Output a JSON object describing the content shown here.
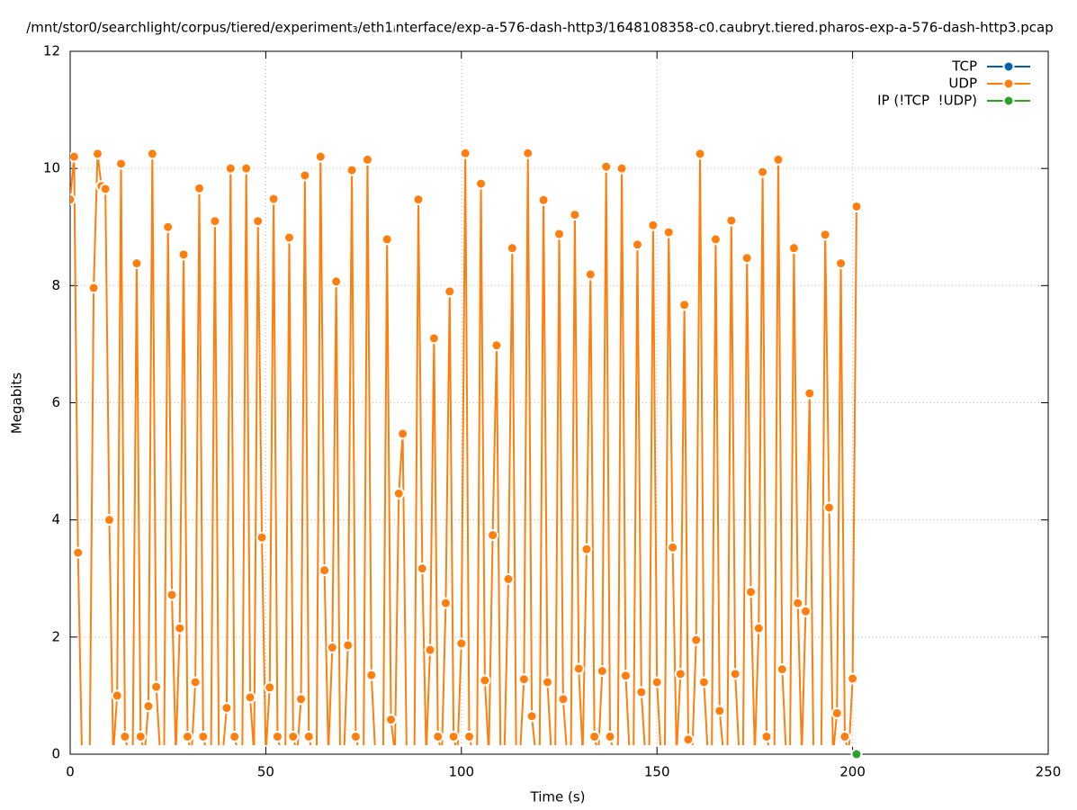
{
  "chart_data": {
    "type": "line",
    "title": "/mnt/stor0/searchlight/corpus/tiered/experiment₃/eth1ᵢnterface/exp-a-576-dash-http3/1648108358-c0.caubryt.tiered.pharos-exp-a-576-dash-http3.pcap",
    "xlabel": "Time (s)",
    "ylabel": "Megabits",
    "xlim": [
      0,
      250
    ],
    "xticks": [
      0,
      50,
      100,
      150,
      200,
      250
    ],
    "ylim": [
      0,
      12
    ],
    "yticks": [
      0,
      2,
      4,
      6,
      8,
      10,
      12
    ],
    "grid": true,
    "legend": "top-right",
    "series": [
      {
        "name": "TCP",
        "color": "#0060ad",
        "x": [],
        "values": []
      },
      {
        "name": "UDP",
        "color": "#ff7f0e",
        "x": [
          0,
          1,
          2,
          3,
          4,
          5,
          6,
          7,
          8,
          9,
          10,
          11,
          12,
          13,
          14,
          15,
          16,
          17,
          18,
          19,
          20,
          21,
          22,
          23,
          24,
          25,
          26,
          27,
          28,
          29,
          30,
          31,
          32,
          33,
          34,
          35,
          36,
          37,
          38,
          39,
          40,
          41,
          42,
          43,
          44,
          45,
          46,
          47,
          48,
          49,
          50,
          51,
          52,
          53,
          54,
          55,
          56,
          57,
          58,
          59,
          60,
          61,
          62,
          63,
          64,
          65,
          66,
          67,
          68,
          69,
          70,
          71,
          72,
          73,
          74,
          75,
          76,
          77,
          78,
          79,
          80,
          81,
          82,
          83,
          84,
          85,
          86,
          87,
          88,
          89,
          90,
          91,
          92,
          93,
          94,
          95,
          96,
          97,
          98,
          99,
          100,
          101,
          102,
          103,
          104,
          105,
          106,
          107,
          108,
          109,
          110,
          111,
          112,
          113,
          114,
          115,
          116,
          117,
          118,
          119,
          120,
          121,
          122,
          123,
          124,
          125,
          126,
          127,
          128,
          129,
          130,
          131,
          132,
          133,
          134,
          135,
          136,
          137,
          138,
          139,
          140,
          141,
          142,
          143,
          144,
          145,
          146,
          147,
          148,
          149,
          150,
          151,
          152,
          153,
          154,
          155,
          156,
          157,
          158,
          159,
          160,
          161,
          162,
          163,
          164,
          165,
          166,
          167,
          168,
          169,
          170,
          171,
          172,
          173,
          174,
          175,
          176,
          177,
          178,
          179,
          180,
          181,
          182,
          183,
          184,
          185,
          186,
          187,
          188,
          189,
          190,
          191,
          192,
          193,
          194,
          195,
          196,
          197,
          198,
          199,
          200,
          201
        ],
        "values": [
          9.47,
          10.2,
          3.44,
          0,
          0,
          0,
          7.96,
          10.25,
          9.7,
          9.65,
          4.0,
          0,
          1.0,
          10.08,
          0.3,
          0,
          0,
          8.38,
          0.3,
          0,
          0.82,
          10.25,
          1.15,
          0,
          0,
          9.0,
          2.72,
          0,
          2.15,
          8.53,
          0.3,
          0,
          1.23,
          9.66,
          0.3,
          0,
          0,
          9.1,
          0,
          0,
          0.79,
          10.0,
          0.3,
          0,
          0,
          10.0,
          0.97,
          0,
          9.1,
          3.7,
          0,
          1.14,
          9.48,
          0.3,
          0,
          0,
          8.82,
          0.3,
          0,
          0.94,
          9.88,
          0.3,
          0,
          0,
          10.2,
          3.14,
          0,
          1.82,
          8.07,
          0,
          0,
          1.86,
          9.97,
          0.3,
          0,
          0,
          10.15,
          1.35,
          0,
          0,
          0,
          8.79,
          0.59,
          0,
          4.45,
          5.47,
          0,
          0,
          0,
          9.47,
          3.17,
          0,
          1.78,
          7.1,
          0.3,
          0,
          2.58,
          7.9,
          0.3,
          0,
          1.89,
          10.26,
          0.3,
          0,
          0,
          9.74,
          1.26,
          0,
          3.74,
          6.98,
          0,
          0,
          2.99,
          8.64,
          0,
          0,
          1.28,
          10.26,
          0.65,
          0,
          0,
          9.46,
          1.23,
          0,
          0,
          8.88,
          0.94,
          0,
          0,
          9.21,
          1.46,
          0,
          3.5,
          8.19,
          0.3,
          0,
          1.42,
          10.03,
          0.3,
          0,
          0,
          10.0,
          1.34,
          0,
          0,
          8.7,
          1.06,
          0,
          0,
          9.03,
          1.23,
          0,
          0,
          8.91,
          3.53,
          0,
          1.37,
          7.67,
          0.25,
          0,
          1.95,
          10.25,
          1.23,
          0,
          0,
          8.79,
          0.74,
          0,
          0,
          9.11,
          1.37,
          0,
          0,
          8.47,
          2.77,
          0,
          2.15,
          9.94,
          0.3,
          0,
          0,
          10.15,
          1.45,
          0,
          0,
          8.64,
          2.58,
          0,
          2.44,
          6.16,
          0,
          0,
          0,
          8.87,
          4.21,
          0,
          0.7,
          8.38,
          0.3,
          0,
          1.29,
          9.35
        ]
      },
      {
        "name": "IP (!TCP  !UDP)",
        "color": "#2ca02c",
        "x": [
          201
        ],
        "values": [
          0
        ]
      }
    ]
  }
}
